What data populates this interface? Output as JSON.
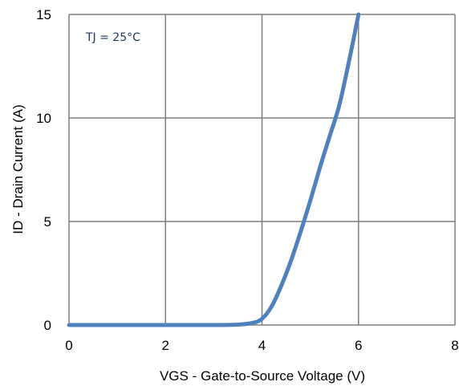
{
  "chart_data": {
    "type": "line",
    "title": "",
    "xlabel": "VGS - Gate-to-Source Voltage (V)",
    "ylabel": "ID - Drain Current (A)",
    "xlim": [
      0,
      8
    ],
    "ylim": [
      0,
      15
    ],
    "x_ticks": [
      0,
      2,
      4,
      6,
      8
    ],
    "y_ticks": [
      0,
      5,
      10,
      15
    ],
    "x_tick_labels": [
      "0",
      "2",
      "4",
      "6",
      "8"
    ],
    "y_tick_labels": [
      "0",
      "5",
      "10",
      "15"
    ],
    "grid": true,
    "annotation": "TJ = 25°C",
    "colors": {
      "series": "#4f81bd",
      "grid": "#7f7f7f",
      "annotation": "#1f3864"
    },
    "series": [
      {
        "x": [
          0,
          1,
          2,
          3,
          3.5,
          3.8,
          4.0,
          4.2,
          4.4,
          4.6,
          4.8,
          5.0,
          5.2,
          5.4,
          5.6,
          5.8,
          6.0
        ],
        "y": [
          0,
          0,
          0,
          0,
          0.02,
          0.1,
          0.3,
          0.9,
          1.9,
          3.1,
          4.5,
          6.0,
          7.6,
          9.1,
          10.6,
          12.7,
          15.0
        ]
      }
    ]
  }
}
